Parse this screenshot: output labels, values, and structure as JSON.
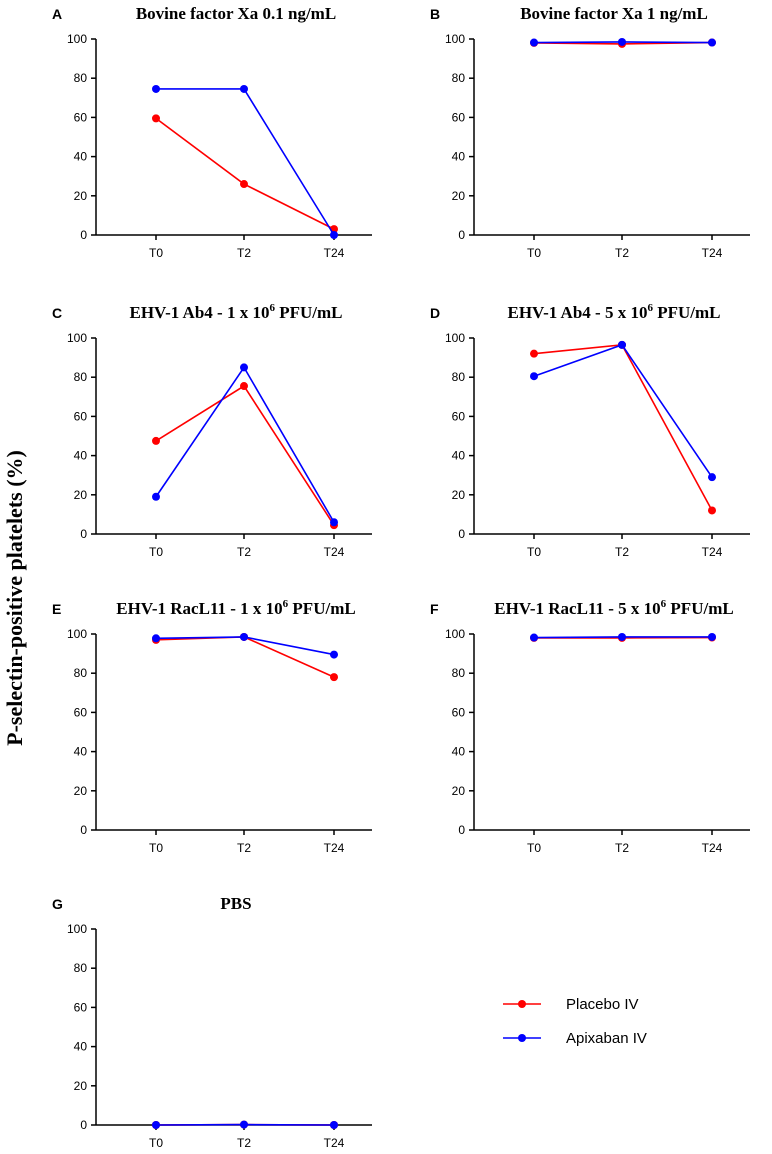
{
  "figure": {
    "ylabel": "P-selectin-positive platelets (%)",
    "legend": [
      {
        "name": "Placebo IV",
        "color": "#ff0000"
      },
      {
        "name": "Apixaban IV",
        "color": "#0000ff"
      }
    ]
  },
  "chart_data": [
    {
      "type": "line",
      "letter": "A",
      "title": "Bovine factor Xa 0.1 ng/mL",
      "categories": [
        "T0",
        "T2",
        "T24"
      ],
      "ylim": [
        0,
        100
      ],
      "yticks": [
        0,
        20,
        40,
        60,
        80,
        100
      ],
      "series": [
        {
          "name": "Placebo IV",
          "color": "#ff0000",
          "values": [
            59.5,
            26,
            3
          ]
        },
        {
          "name": "Apixaban IV",
          "color": "#0000ff",
          "values": [
            74.5,
            74.5,
            0
          ]
        }
      ]
    },
    {
      "type": "line",
      "letter": "B",
      "title": "Bovine factor Xa 1 ng/mL",
      "categories": [
        "T0",
        "T2",
        "T24"
      ],
      "ylim": [
        0,
        100
      ],
      "yticks": [
        0,
        20,
        40,
        60,
        80,
        100
      ],
      "series": [
        {
          "name": "Placebo IV",
          "color": "#ff0000",
          "values": [
            98,
            97.5,
            98.2
          ]
        },
        {
          "name": "Apixaban IV",
          "color": "#0000ff",
          "values": [
            98.2,
            98.5,
            98.2
          ]
        }
      ]
    },
    {
      "type": "line",
      "letter": "C",
      "title": "EHV-1 Ab4 - 1 x 10",
      "title_sup": "6",
      "title_suffix": " PFU/mL",
      "categories": [
        "T0",
        "T2",
        "T24"
      ],
      "ylim": [
        0,
        100
      ],
      "yticks": [
        0,
        20,
        40,
        60,
        80,
        100
      ],
      "series": [
        {
          "name": "Placebo IV",
          "color": "#ff0000",
          "values": [
            47.5,
            75.5,
            4.5
          ]
        },
        {
          "name": "Apixaban IV",
          "color": "#0000ff",
          "values": [
            19,
            85,
            6
          ]
        }
      ]
    },
    {
      "type": "line",
      "letter": "D",
      "title": "EHV-1 Ab4 - 5 x 10",
      "title_sup": "6",
      "title_suffix": " PFU/mL",
      "categories": [
        "T0",
        "T2",
        "T24"
      ],
      "ylim": [
        0,
        100
      ],
      "yticks": [
        0,
        20,
        40,
        60,
        80,
        100
      ],
      "series": [
        {
          "name": "Placebo IV",
          "color": "#ff0000",
          "values": [
            92,
            96.5,
            12
          ]
        },
        {
          "name": "Apixaban IV",
          "color": "#0000ff",
          "values": [
            80.5,
            96.5,
            29
          ]
        }
      ]
    },
    {
      "type": "line",
      "letter": "E",
      "title": "EHV-1 RacL11 - 1 x 10",
      "title_sup": "6",
      "title_suffix": " PFU/mL",
      "categories": [
        "T0",
        "T2",
        "T24"
      ],
      "ylim": [
        0,
        100
      ],
      "yticks": [
        0,
        20,
        40,
        60,
        80,
        100
      ],
      "series": [
        {
          "name": "Placebo IV",
          "color": "#ff0000",
          "values": [
            97,
            98.5,
            78
          ]
        },
        {
          "name": "Apixaban IV",
          "color": "#0000ff",
          "values": [
            97.8,
            98.5,
            89.5
          ]
        }
      ]
    },
    {
      "type": "line",
      "letter": "F",
      "title": "EHV-1 RacL11 - 5 x 10",
      "title_sup": "6",
      "title_suffix": " PFU/mL",
      "categories": [
        "T0",
        "T2",
        "T24"
      ],
      "ylim": [
        0,
        100
      ],
      "yticks": [
        0,
        20,
        40,
        60,
        80,
        100
      ],
      "series": [
        {
          "name": "Placebo IV",
          "color": "#ff0000",
          "values": [
            98,
            98,
            98.2
          ]
        },
        {
          "name": "Apixaban IV",
          "color": "#0000ff",
          "values": [
            98.2,
            98.5,
            98.5
          ]
        }
      ]
    },
    {
      "type": "line",
      "letter": "G",
      "title": "PBS",
      "categories": [
        "T0",
        "T2",
        "T24"
      ],
      "ylim": [
        0,
        100
      ],
      "yticks": [
        0,
        20,
        40,
        60,
        80,
        100
      ],
      "series": [
        {
          "name": "Placebo IV",
          "color": "#ff0000",
          "values": [
            0,
            0.2,
            0
          ]
        },
        {
          "name": "Apixaban IV",
          "color": "#0000ff",
          "values": [
            0,
            0.2,
            0
          ]
        }
      ]
    }
  ]
}
